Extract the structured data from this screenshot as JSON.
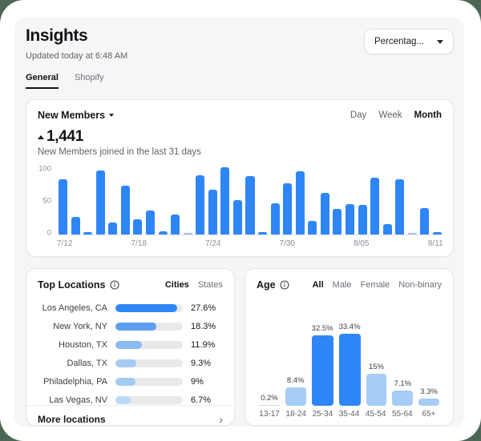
{
  "window": {
    "backdrop_color": "#4d6757",
    "surface_color": "#f6f6f7"
  },
  "colors": {
    "primary_blue": "#2E86F6",
    "light_blue": "#A5CDF6",
    "muted_bar_blue": "#9CC6F2",
    "track_gray": "#e9e9eb"
  },
  "header": {
    "title": "Insights",
    "updated": "Updated today at 6:48 AM",
    "filter": {
      "value": "Percentag...",
      "icon": "caret-down-icon"
    }
  },
  "nav_tabs": [
    {
      "label": "General",
      "active": true
    },
    {
      "label": "Shopify",
      "active": false
    }
  ],
  "new_members": {
    "title": "New Members",
    "title_icon": "caret-down-icon",
    "period_tabs": [
      {
        "label": "Day",
        "active": false
      },
      {
        "label": "Week",
        "active": false
      },
      {
        "label": "Month",
        "active": true
      }
    ],
    "trend": "up",
    "value": "1,441",
    "subtitle": "New Members joined in the last 31 days"
  },
  "top_locations": {
    "title": "Top Locations",
    "info_icon": "info-icon",
    "tabs": [
      {
        "label": "Cities",
        "active": true
      },
      {
        "label": "States",
        "active": false
      }
    ],
    "footer": {
      "label": "More locations",
      "icon": "chevron-right-icon"
    }
  },
  "age": {
    "title": "Age",
    "info_icon": "info-icon",
    "tabs": [
      {
        "label": "All",
        "active": true
      },
      {
        "label": "Male",
        "active": false
      },
      {
        "label": "Female",
        "active": false
      },
      {
        "label": "Non-binary",
        "active": false
      }
    ]
  },
  "chart_data": [
    {
      "id": "new_members_daily",
      "type": "bar",
      "title": "New Members",
      "ylim": [
        0,
        100
      ],
      "y_ticks": [
        0,
        50,
        100
      ],
      "grid": false,
      "x_tick_labels": [
        {
          "index": 0,
          "label": "7/12"
        },
        {
          "index": 6,
          "label": "7/18"
        },
        {
          "index": 12,
          "label": "7/24"
        },
        {
          "index": 18,
          "label": "7/30"
        },
        {
          "index": 24,
          "label": "8/05"
        },
        {
          "index": 30,
          "label": "8/11"
        }
      ],
      "values": [
        80,
        26,
        3,
        93,
        17,
        71,
        22,
        35,
        5,
        29,
        1,
        86,
        65,
        98,
        50,
        85,
        4,
        45,
        75,
        92,
        20,
        60,
        37,
        44,
        43,
        82,
        15,
        80,
        1,
        38,
        4
      ],
      "muted_indices": [
        10,
        28
      ]
    },
    {
      "id": "top_locations",
      "type": "bar",
      "orientation": "horizontal",
      "scale_max": 30,
      "rows": [
        {
          "label": "Los Angeles, CA",
          "value": 27.6,
          "display": "27.6%",
          "color": "#2E86F6"
        },
        {
          "label": "New York, NY",
          "value": 18.3,
          "display": "18.3%",
          "color": "#5C9EF0"
        },
        {
          "label": "Houston, TX",
          "value": 11.9,
          "display": "11.9%",
          "color": "#8ABBF2"
        },
        {
          "label": "Dallas, TX",
          "value": 9.3,
          "display": "9.3%",
          "color": "#A5CBF4"
        },
        {
          "label": "Philadelphia, PA",
          "value": 9,
          "display": "9%",
          "color": "#A5CBF4"
        },
        {
          "label": "Las Vegas, NV",
          "value": 6.7,
          "display": "6.7%",
          "color": "#BBD8F7"
        }
      ]
    },
    {
      "id": "age_distribution",
      "type": "bar",
      "categories": [
        "13-17",
        "18-24",
        "25-34",
        "35-44",
        "45-54",
        "55-64",
        "65+"
      ],
      "values": [
        0.2,
        8.4,
        32.5,
        33.4,
        15,
        7.1,
        3.3
      ],
      "labels": [
        "0.2%",
        "8.4%",
        "32.5%",
        "33.4%",
        "15%",
        "7.1%",
        "3.3%"
      ],
      "emphasis": [
        false,
        false,
        true,
        true,
        false,
        false,
        false
      ]
    }
  ]
}
